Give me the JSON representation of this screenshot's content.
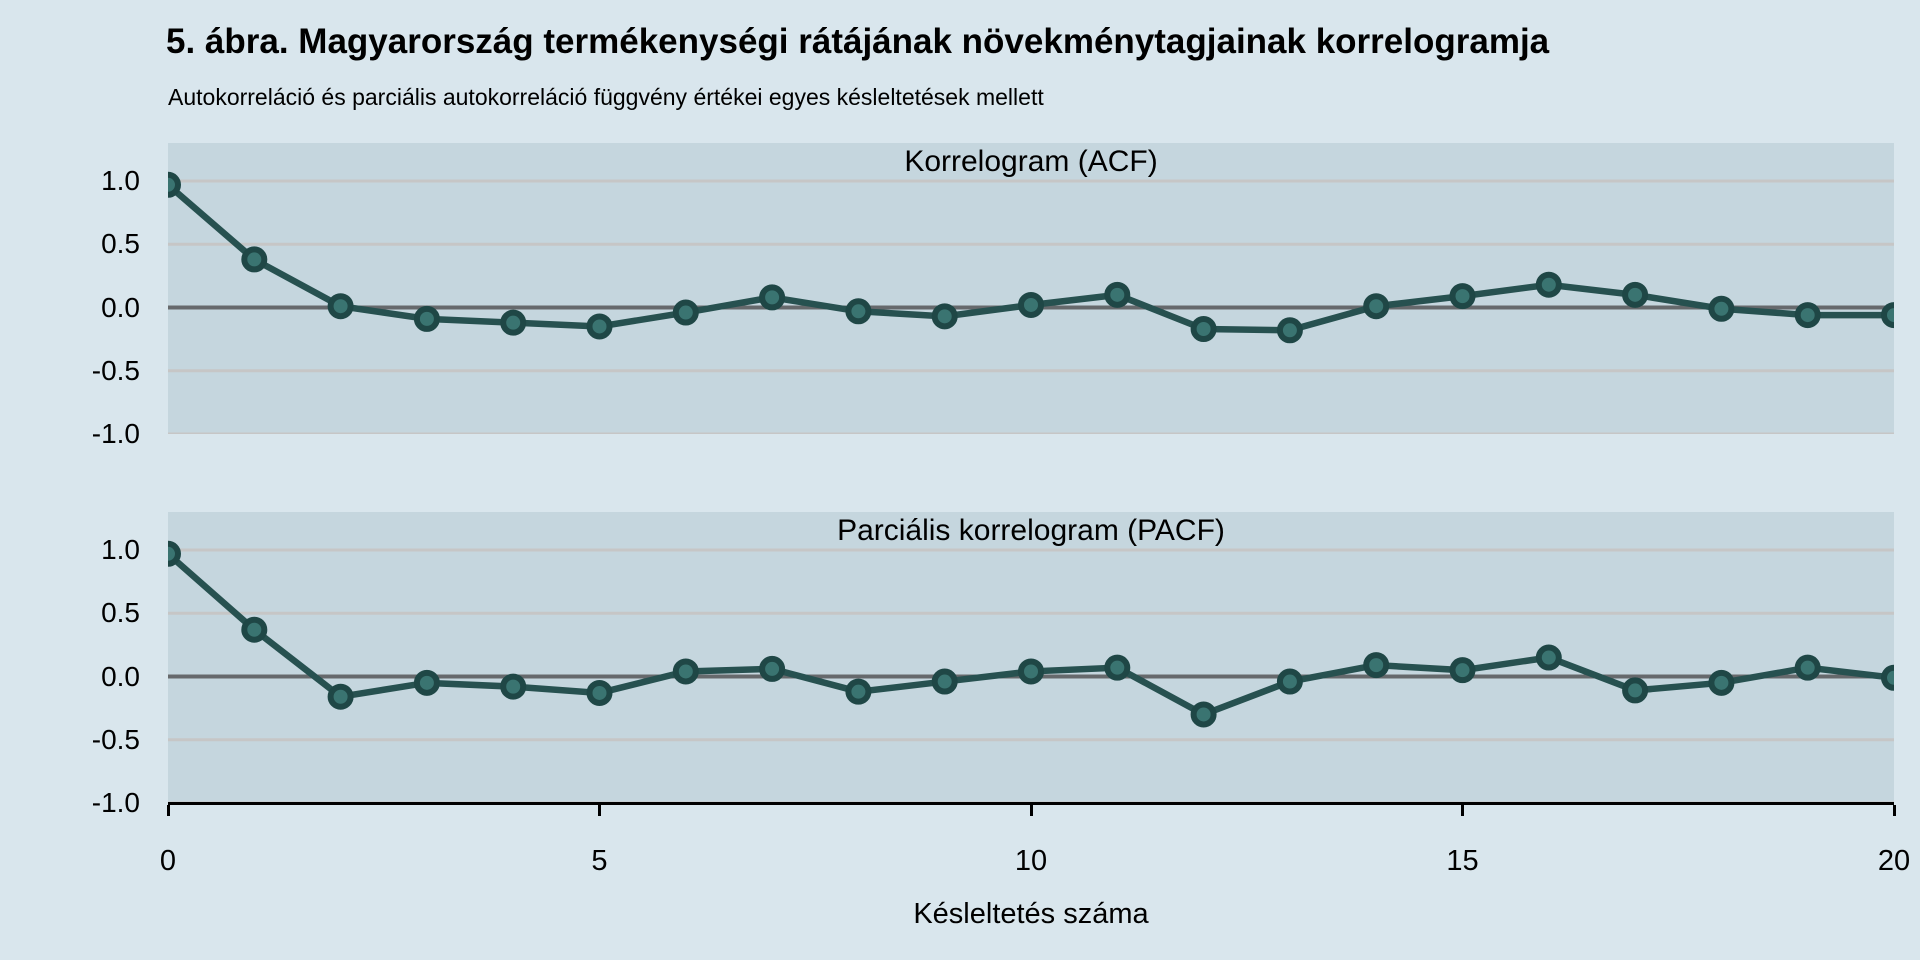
{
  "page": {
    "figure_title": "5. ábra. Magyarország termékenységi rátájának növekménytagjainak korrelogramja",
    "figure_subtitle": "Autokorreláció és parciális autokorreláció függvény értékei egyes késleltetések mellett"
  },
  "chart_data": [
    {
      "type": "line",
      "name": "acf",
      "title": "Korrelogram (ACF)",
      "xlabel": "Késleltetés száma",
      "x": [
        0,
        1,
        2,
        3,
        4,
        5,
        6,
        7,
        8,
        9,
        10,
        11,
        12,
        13,
        14,
        15,
        16,
        17,
        18,
        19,
        20
      ],
      "values": [
        0.97,
        0.38,
        0.01,
        -0.09,
        -0.12,
        -0.15,
        -0.04,
        0.08,
        -0.03,
        -0.07,
        0.02,
        0.1,
        -0.17,
        -0.18,
        0.01,
        0.09,
        0.18,
        0.1,
        -0.01,
        -0.06,
        -0.06
      ],
      "xlim": [
        0,
        20
      ],
      "ylim": [
        -1.0,
        1.3
      ],
      "y_ticks": [
        1.0,
        0.5,
        0.0,
        -0.5,
        -1.0
      ],
      "y_tick_labels": [
        "1.0",
        "0.5",
        "0.0",
        "-0.5",
        "-1.0"
      ],
      "x_ticks": [
        0,
        5,
        10,
        15,
        20
      ],
      "x_tick_labels": [
        "0",
        "5",
        "10",
        "15",
        "20"
      ],
      "grid": "horizontal",
      "zero_line": true,
      "legend": "none"
    },
    {
      "type": "line",
      "name": "pacf",
      "title": "Parciális korrelogram (PACF)",
      "xlabel": "Késleltetés száma",
      "x": [
        0,
        1,
        2,
        3,
        4,
        5,
        6,
        7,
        8,
        9,
        10,
        11,
        12,
        13,
        14,
        15,
        16,
        17,
        18,
        19,
        20
      ],
      "values": [
        0.97,
        0.37,
        -0.16,
        -0.05,
        -0.08,
        -0.13,
        0.04,
        0.06,
        -0.12,
        -0.04,
        0.04,
        0.07,
        -0.3,
        -0.04,
        0.09,
        0.05,
        0.15,
        -0.11,
        -0.05,
        0.07,
        -0.01
      ],
      "xlim": [
        0,
        20
      ],
      "ylim": [
        -1.0,
        1.3
      ],
      "y_ticks": [
        1.0,
        0.5,
        0.0,
        -0.5,
        -1.0
      ],
      "y_tick_labels": [
        "1.0",
        "0.5",
        "0.0",
        "-0.5",
        "-1.0"
      ],
      "x_ticks": [
        0,
        5,
        10,
        15,
        20
      ],
      "x_tick_labels": [
        "0",
        "5",
        "10",
        "15",
        "20"
      ],
      "grid": "horizontal",
      "zero_line": true,
      "legend": "none"
    }
  ],
  "colors": {
    "page_bg": "#d9e6ed",
    "panel_bg": "#c5d6de",
    "gridline": "#c6c6c6",
    "zero_line": "#66696c",
    "series_line": "#275150",
    "marker_fill": "#3a7471",
    "marker_ring": "#1f4746",
    "axis_line": "#000000",
    "text": "#000000"
  }
}
